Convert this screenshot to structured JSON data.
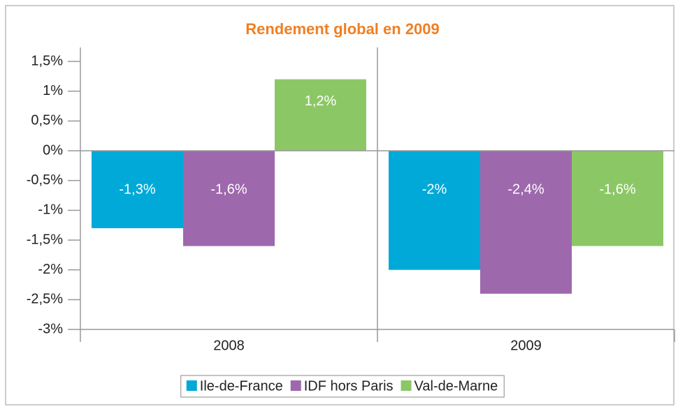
{
  "chart_data": {
    "type": "bar",
    "title": "Rendement global en 2009",
    "categories": [
      "2008",
      "2009"
    ],
    "series": [
      {
        "name": "Ile-de-France",
        "color": "#00a9d8",
        "values": [
          -1.3,
          -2
        ],
        "value_labels": [
          "-1,3%",
          "-2%"
        ]
      },
      {
        "name": "IDF hors Paris",
        "color": "#9e68ad",
        "values": [
          -1.6,
          -2.4
        ],
        "value_labels": [
          "-1,6%",
          "-2,4%"
        ]
      },
      {
        "name": "Val-de-Marne",
        "color": "#8cc766",
        "values": [
          1.2,
          -1.6
        ],
        "value_labels": [
          "1,2%",
          "-1,6%"
        ]
      }
    ],
    "ylim": [
      -3,
      1.5
    ],
    "yticks": [
      {
        "value": 1.5,
        "label": "1,5%"
      },
      {
        "value": 1,
        "label": "1%"
      },
      {
        "value": 0.5,
        "label": "0,5%"
      },
      {
        "value": 0,
        "label": "0%"
      },
      {
        "value": -0.5,
        "label": "-0,5%"
      },
      {
        "value": -1,
        "label": "-1%"
      },
      {
        "value": -1.5,
        "label": "-1,5%"
      },
      {
        "value": -2,
        "label": "-2%"
      },
      {
        "value": -2.5,
        "label": "-2,5%"
      },
      {
        "value": -3,
        "label": "-3%"
      }
    ],
    "legend": "bottom"
  }
}
